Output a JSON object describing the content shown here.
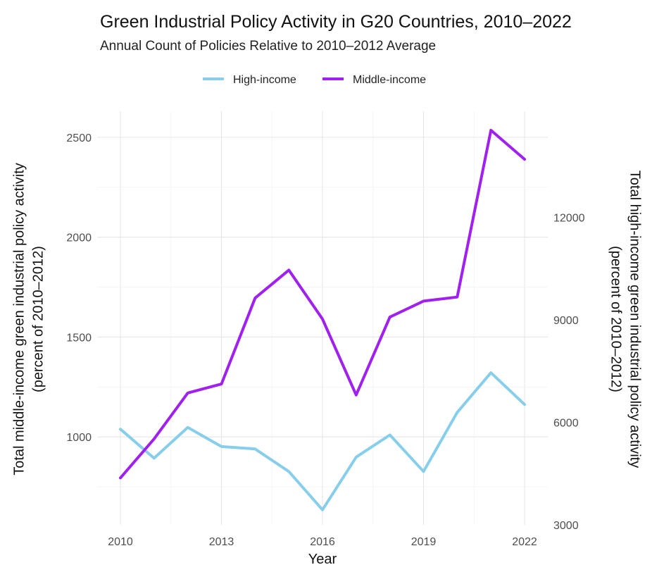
{
  "chart_data": {
    "type": "line",
    "title": "Green Industrial Policy Activity in G20 Countries, 2010–2022",
    "subtitle": "Annual Count of Policies Relative to 2010–2012 Average",
    "xlabel": "Year",
    "ylabel_left": "Total middle-income green industrial policy activity\n(percent of 2010–2012)",
    "ylabel_right": "Total high-income green industrial policy activity\n(percent of 2010–2012)",
    "x": [
      2010,
      2011,
      2012,
      2013,
      2014,
      2015,
      2016,
      2017,
      2018,
      2019,
      2020,
      2021,
      2022
    ],
    "x_ticks": [
      "2010",
      "2013",
      "2016",
      "2019",
      "2022"
    ],
    "y_left_ticks": [
      "1000",
      "1500",
      "2000",
      "2500"
    ],
    "y_right_ticks": [
      "3000",
      "6000",
      "9000",
      "12000"
    ],
    "ylim_left": [
      560,
      2630
    ],
    "ylim_right": [
      3000,
      15100
    ],
    "grid": true,
    "legend_position": "top",
    "series": [
      {
        "name": "High-income",
        "axis": "right",
        "color": "#87CEEB",
        "values": [
          5800,
          4950,
          5850,
          5290,
          5220,
          4560,
          3440,
          4980,
          5630,
          4560,
          6290,
          7450,
          6520
        ]
      },
      {
        "name": "Middle-income",
        "axis": "left",
        "color": "#A020F0",
        "values": [
          795,
          990,
          1220,
          1265,
          1695,
          1835,
          1590,
          1210,
          1600,
          1680,
          1700,
          2535,
          2390
        ]
      }
    ]
  }
}
